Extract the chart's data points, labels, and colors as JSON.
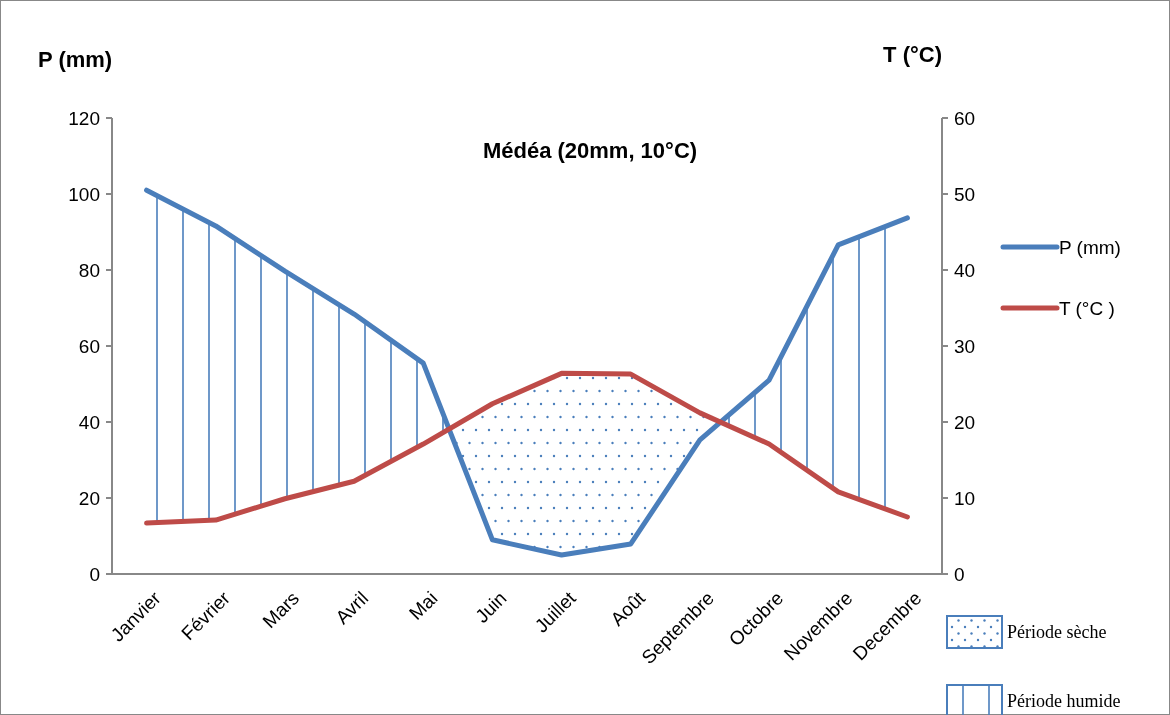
{
  "chart_data": {
    "type": "line",
    "title": "Médéa (20mm, 10°C)",
    "ylabel": "P (mm)",
    "y2label": "T (°C)",
    "categories": [
      "Janvier",
      "Février",
      "Mars",
      "Avril",
      "Mai",
      "Juin",
      "Juillet",
      "Août",
      "Septembre",
      "Octobre",
      "Novembre",
      "Decembre"
    ],
    "series": [
      {
        "name": "P (mm)",
        "color": "#4a7ebb",
        "values": [
          101,
          91.6,
          79.7,
          68.4,
          55.5,
          9,
          5,
          7.9,
          35.3,
          51,
          86.6,
          93.7
        ]
      },
      {
        "name": "T (°C )",
        "color": "#be4b48",
        "axis": "y2",
        "values": [
          6.7,
          7.1,
          9.9,
          12.2,
          17.1,
          22.4,
          26.4,
          26.3,
          21.2,
          17.1,
          10.8,
          7.5
        ]
      }
    ],
    "ylim": [
      0,
      120
    ],
    "yticks": [
      0,
      20,
      40,
      60,
      80,
      100,
      120
    ],
    "y2lim": [
      0,
      60
    ],
    "y2ticks": [
      0,
      10,
      20,
      30,
      40,
      50,
      60
    ],
    "legend": "right",
    "marker": "none",
    "line_style": "solid",
    "annotations": [
      "Période sèche",
      "Période humide"
    ]
  }
}
